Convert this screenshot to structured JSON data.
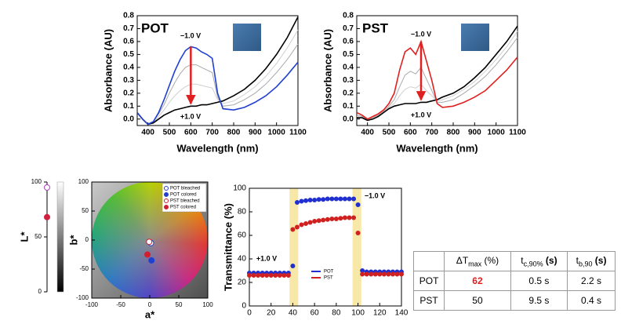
{
  "chart_data": [
    {
      "type": "line",
      "label": "POT",
      "label_color": "#1f6fc0",
      "xlabel": "Wavelength (nm)",
      "ylabel": "Absorbance (AU)",
      "annotations": [
        "−1.0 V",
        "+1.0 V"
      ],
      "arrow_color": "#e02020",
      "xlim": [
        350,
        1100
      ],
      "xticks": [
        400,
        500,
        600,
        700,
        800,
        900,
        1000,
        1100
      ],
      "ylim": [
        -0.05,
        0.8
      ],
      "yticks": [
        {
          "value": 0,
          "label": "0.0"
        },
        {
          "value": 0.1,
          "label": "0.1"
        },
        {
          "value": 0.2,
          "label": "0.2"
        },
        {
          "value": 0.3,
          "label": "0.3"
        },
        {
          "value": 0.4,
          "label": "0.4"
        },
        {
          "value": 0.5,
          "label": "0.5"
        },
        {
          "value": 0.6,
          "label": "0.6"
        },
        {
          "value": 0.7,
          "label": "0.7"
        },
        {
          "value": 0.8,
          "label": "0.8"
        }
      ],
      "x": [
        350,
        375,
        400,
        425,
        450,
        475,
        500,
        525,
        550,
        575,
        600,
        625,
        650,
        675,
        700,
        725,
        750,
        800,
        850,
        900,
        950,
        1000,
        1050,
        1100
      ],
      "series": [
        {
          "color": "#d0d0d0",
          "values": [
            0.05,
            0.0,
            -0.04,
            -0.03,
            0.02,
            0.07,
            0.13,
            0.18,
            0.22,
            0.25,
            0.27,
            0.27,
            0.26,
            0.25,
            0.24,
            0.15,
            0.12,
            0.14,
            0.19,
            0.25,
            0.33,
            0.43,
            0.55,
            0.69
          ]
        },
        {
          "color": "#aaaaaa",
          "values": [
            0.05,
            0.0,
            -0.04,
            -0.02,
            0.04,
            0.11,
            0.2,
            0.28,
            0.35,
            0.4,
            0.42,
            0.42,
            0.4,
            0.38,
            0.36,
            0.17,
            0.1,
            0.11,
            0.15,
            0.2,
            0.27,
            0.36,
            0.46,
            0.58
          ]
        },
        {
          "color": "#000000",
          "values": [
            0.05,
            0.0,
            -0.04,
            -0.03,
            0.0,
            0.03,
            0.05,
            0.07,
            0.08,
            0.09,
            0.1,
            0.1,
            0.11,
            0.11,
            0.12,
            0.13,
            0.14,
            0.18,
            0.23,
            0.3,
            0.39,
            0.5,
            0.63,
            0.79
          ]
        },
        {
          "color": "#1f3fd0",
          "values": [
            0.05,
            0.0,
            -0.04,
            -0.02,
            0.05,
            0.15,
            0.26,
            0.37,
            0.46,
            0.53,
            0.56,
            0.55,
            0.52,
            0.5,
            0.47,
            0.2,
            0.08,
            0.07,
            0.09,
            0.13,
            0.18,
            0.25,
            0.34,
            0.44
          ]
        }
      ]
    },
    {
      "type": "line",
      "label": "PST",
      "label_color": "#d02020",
      "xlabel": "Wavelength (nm)",
      "ylabel": "Absorbance (AU)",
      "annotations": [
        "−1.0 V",
        "+1.0 V"
      ],
      "arrow_color": "#e02020",
      "xlim": [
        350,
        1100
      ],
      "xticks": [
        400,
        500,
        600,
        700,
        800,
        900,
        1000,
        1100
      ],
      "ylim": [
        -0.05,
        0.8
      ],
      "yticks": [
        {
          "value": 0,
          "label": "0.0"
        },
        {
          "value": 0.1,
          "label": "0.1"
        },
        {
          "value": 0.2,
          "label": "0.2"
        },
        {
          "value": 0.3,
          "label": "0.3"
        },
        {
          "value": 0.4,
          "label": "0.4"
        },
        {
          "value": 0.5,
          "label": "0.5"
        },
        {
          "value": 0.6,
          "label": "0.6"
        },
        {
          "value": 0.7,
          "label": "0.7"
        },
        {
          "value": 0.8,
          "label": "0.8"
        }
      ],
      "x": [
        350,
        375,
        400,
        425,
        450,
        475,
        500,
        525,
        550,
        575,
        600,
        625,
        650,
        675,
        700,
        725,
        750,
        800,
        850,
        900,
        950,
        1000,
        1050,
        1100
      ],
      "series": [
        {
          "color": "#d0d0d0",
          "values": [
            0.02,
            0.01,
            -0.01,
            0.0,
            0.02,
            0.05,
            0.09,
            0.12,
            0.18,
            0.23,
            0.25,
            0.24,
            0.27,
            0.22,
            0.18,
            0.14,
            0.15,
            0.18,
            0.23,
            0.29,
            0.37,
            0.46,
            0.56,
            0.68
          ]
        },
        {
          "color": "#aaaaaa",
          "values": [
            0.03,
            0.02,
            -0.01,
            0.01,
            0.03,
            0.06,
            0.1,
            0.15,
            0.25,
            0.34,
            0.37,
            0.35,
            0.4,
            0.31,
            0.22,
            0.13,
            0.13,
            0.15,
            0.2,
            0.26,
            0.33,
            0.42,
            0.52,
            0.63
          ]
        },
        {
          "color": "#000000",
          "values": [
            0.01,
            0.01,
            -0.01,
            0.0,
            0.02,
            0.05,
            0.08,
            0.1,
            0.11,
            0.12,
            0.12,
            0.12,
            0.13,
            0.13,
            0.14,
            0.15,
            0.17,
            0.2,
            0.25,
            0.32,
            0.4,
            0.5,
            0.6,
            0.72
          ]
        },
        {
          "color": "#e02020",
          "values": [
            0.05,
            0.03,
            0.0,
            0.02,
            0.04,
            0.07,
            0.12,
            0.2,
            0.38,
            0.52,
            0.55,
            0.5,
            0.6,
            0.45,
            0.3,
            0.12,
            0.09,
            0.1,
            0.13,
            0.17,
            0.22,
            0.3,
            0.38,
            0.48
          ]
        }
      ]
    },
    {
      "type": "scale",
      "ylabel": "L*",
      "ylim": [
        0,
        100
      ],
      "yticks": [
        0,
        50,
        100
      ],
      "series": [
        {
          "color": "#b040c0",
          "marker": "circle-open",
          "values": [
            95
          ]
        },
        {
          "color": "#d02040",
          "marker": "circle",
          "values": [
            68
          ]
        }
      ]
    },
    {
      "type": "scatter",
      "xlabel": "a*",
      "ylabel": "b*",
      "legend": "upper right",
      "xlim": [
        -100,
        100
      ],
      "xticks": [
        -100,
        -50,
        0,
        50,
        100
      ],
      "ylim": [
        -100,
        100
      ],
      "yticks": [
        -100,
        -50,
        0,
        50,
        100
      ],
      "series": [
        {
          "name": "POT bleached",
          "color": "#2040d0",
          "marker": "circle-open",
          "x": [
            2
          ],
          "values": [
            -5
          ]
        },
        {
          "name": "POT colored",
          "color": "#2040d0",
          "marker": "circle",
          "x": [
            3
          ],
          "values": [
            -35
          ]
        },
        {
          "name": "PST bleached",
          "color": "#d02030",
          "marker": "circle-open",
          "x": [
            -1
          ],
          "values": [
            -3
          ]
        },
        {
          "name": "PST colored",
          "color": "#d02030",
          "marker": "circle",
          "x": [
            -4
          ],
          "values": [
            -25
          ]
        }
      ]
    },
    {
      "type": "line",
      "marker": "circle-open",
      "ylabel": "Transmittance (%)",
      "legend": "lower center",
      "annotations": [
        "+1.0 V",
        "−1.0 V"
      ],
      "shaded_regions": [
        [
          37,
          45
        ],
        [
          95,
          103
        ]
      ],
      "shade_color": "#f7e8a8",
      "xlim": [
        0,
        140
      ],
      "xticks": [
        0,
        20,
        40,
        60,
        80,
        100,
        120,
        140
      ],
      "ylim": [
        0,
        100
      ],
      "yticks": [
        0,
        20,
        40,
        60,
        80,
        100
      ],
      "x": [
        0,
        4,
        8,
        12,
        16,
        20,
        24,
        28,
        32,
        36,
        40,
        44,
        48,
        52,
        56,
        60,
        64,
        68,
        72,
        76,
        80,
        84,
        88,
        92,
        96,
        100,
        104,
        108,
        112,
        116,
        120,
        124,
        128,
        132,
        136,
        140
      ],
      "series": [
        {
          "name": "POT",
          "color": "#2030d0",
          "values": [
            28,
            28,
            28,
            28,
            28,
            28,
            28,
            28,
            28,
            28,
            34,
            88,
            89,
            89.5,
            90,
            90,
            90.5,
            90.5,
            91,
            91,
            91,
            91,
            91,
            91,
            91,
            86,
            30,
            29,
            29,
            29,
            29,
            29,
            29,
            29,
            29,
            29
          ]
        },
        {
          "name": "PST",
          "color": "#d02020",
          "values": [
            26,
            26,
            26,
            26,
            26,
            26,
            26,
            26,
            26,
            26,
            65,
            67,
            69,
            70,
            71,
            72,
            72.5,
            73,
            73.5,
            74,
            74,
            74.5,
            75,
            75,
            75,
            62,
            27,
            27,
            27,
            27,
            27,
            27,
            27,
            27,
            27,
            27
          ]
        }
      ]
    }
  ],
  "table": {
    "header": [
      {
        "symbol": "ΔT",
        "sub": "max",
        "unit": " (%)"
      },
      {
        "symbol": "t",
        "sub": "c,90%",
        "unit": " (s)"
      },
      {
        "symbol": "t",
        "sub": "b,90",
        "unit": " (s)"
      }
    ],
    "rows": [
      {
        "label": "POT",
        "cells": [
          "62",
          "0.5 s",
          "2.2 s"
        ]
      },
      {
        "label": "PST",
        "cells": [
          "50",
          "9.5 s",
          "0.4 s"
        ]
      }
    ]
  }
}
